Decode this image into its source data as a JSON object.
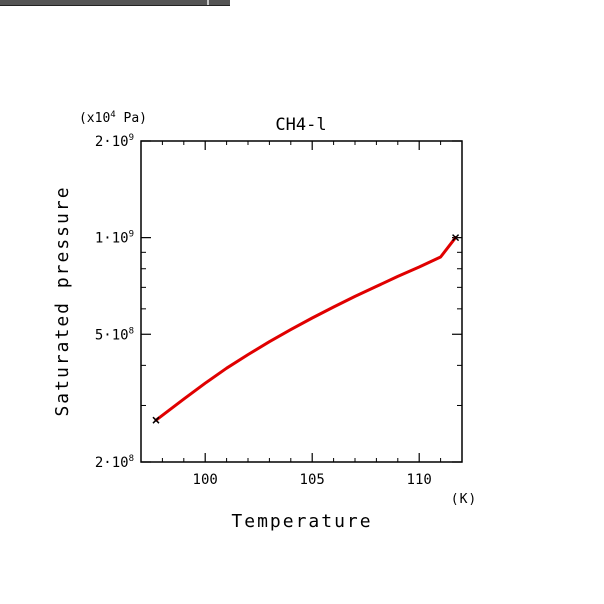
{
  "chart_data": {
    "type": "line",
    "title": "CH4-l",
    "xlabel": "Temperature",
    "ylabel": "Saturated pressure",
    "x_unit": "(K)",
    "y_unit_prefix": "(x10",
    "y_unit_exp": "4",
    "y_unit_suffix": " Pa)",
    "xlim": [
      97,
      112
    ],
    "ylim": [
      200000000,
      2000000000
    ],
    "yscale": "log",
    "x_ticks": [
      {
        "value": 100,
        "label": "100"
      },
      {
        "value": 105,
        "label": "105"
      },
      {
        "value": 110,
        "label": "110"
      }
    ],
    "y_ticks": [
      {
        "value": 200000000,
        "mant": "2",
        "exp": "8"
      },
      {
        "value": 500000000,
        "mant": "5",
        "exp": "8"
      },
      {
        "value": 1000000000,
        "mant": "1",
        "exp": "9"
      },
      {
        "value": 2000000000,
        "mant": "2",
        "exp": "9"
      }
    ],
    "series": [
      {
        "color": "#e00000",
        "x": [
          97.7,
          99,
          100,
          101,
          102,
          103,
          104,
          105,
          106,
          107,
          108,
          109,
          110,
          111,
          111.7
        ],
        "y": [
          270000000,
          314000000,
          352000000,
          392000000,
          432000000,
          474000000,
          517000000,
          562000000,
          608000000,
          656000000,
          705000000,
          757000000,
          810000000,
          870000000,
          1000000000
        ]
      }
    ],
    "markers": [
      {
        "x": 97.7,
        "y": 270000000
      },
      {
        "x": 111.7,
        "y": 1000000000
      }
    ],
    "grid": false
  }
}
